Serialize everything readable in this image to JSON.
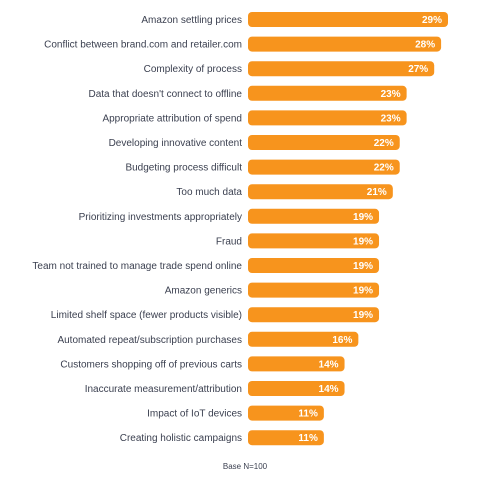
{
  "chart_data": {
    "type": "bar",
    "orientation": "horizontal",
    "bar_color": "#f7941d",
    "value_suffix": "%",
    "categories": [
      "Amazon settling prices",
      "Conflict between brand.com and retailer.com",
      "Complexity of process",
      "Data that doesn't connect to offline",
      "Appropriate attribution of spend",
      "Developing innovative content",
      "Budgeting process difficult",
      "Too much data",
      "Prioritizing investments appropriately",
      "Fraud",
      "Team not trained to manage trade spend online",
      "Amazon generics",
      "Limited shelf space (fewer products visible)",
      "Automated repeat/subscription purchases",
      "Customers shopping off of previous carts",
      "Inaccurate measurement/attribution",
      "Impact of IoT devices",
      "Creating holistic campaigns"
    ],
    "values": [
      29,
      28,
      27,
      23,
      23,
      22,
      22,
      21,
      19,
      19,
      19,
      19,
      19,
      16,
      14,
      14,
      11,
      11
    ],
    "xlim": [
      0,
      29
    ],
    "grid": false,
    "legend": "none"
  },
  "footnote": "Base N=100"
}
